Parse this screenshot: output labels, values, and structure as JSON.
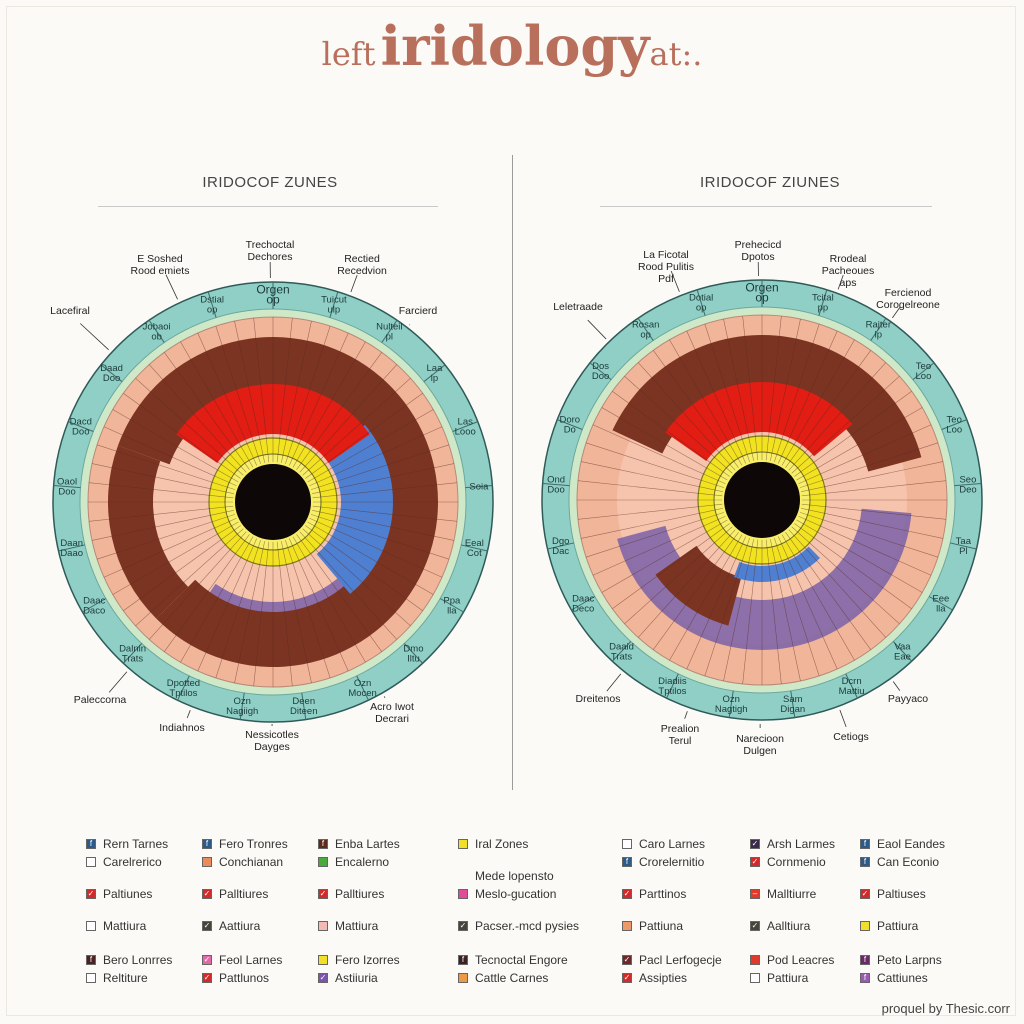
{
  "title": {
    "small_a": "left",
    "big": "iridology",
    "small_b": "at:."
  },
  "colors": {
    "ring": "#8fcfc6",
    "ring_dark": "#5a9a94",
    "brown": "#7c3422",
    "salmon": "#f1b59a",
    "red": "#e11d14",
    "blue": "#4f7fd1",
    "purple": "#7a61a8",
    "yellow": "#f2e321",
    "pupil": "#0d0707"
  },
  "panels": [
    {
      "title": "IRIDOCOF ZUNES",
      "outer_labels": [
        {
          "lines": [
            "Lacefiral"
          ]
        },
        {
          "lines": [
            "E Soshed",
            "Rood emiets"
          ]
        },
        {
          "lines": [
            "Trechoctal",
            "Dechores"
          ]
        },
        {
          "lines": [
            "Rectied",
            "Recedvion"
          ]
        },
        {
          "lines": [
            "Farcierd"
          ]
        },
        {
          "lines": [
            "Paleccorna"
          ]
        },
        {
          "lines": [
            "Indiahnos"
          ]
        },
        {
          "lines": [
            "Nessicotles",
            "Dayges"
          ]
        },
        {
          "lines": [
            "Acro Iwot",
            "Decrari"
          ]
        }
      ],
      "ring_labels": [
        {
          "lines": [
            "Orgen",
            "op"
          ]
        },
        {
          "lines": [
            "Tuicut",
            "ulp"
          ]
        },
        {
          "lines": [
            "Nulteil",
            "pl"
          ]
        },
        {
          "lines": [
            "Laa",
            "lp"
          ]
        },
        {
          "lines": [
            "Las",
            "Looo"
          ]
        },
        {
          "lines": [
            "Soia"
          ]
        },
        {
          "lines": [
            "Eeal",
            "Cot"
          ]
        },
        {
          "lines": [
            "Ppa",
            "lla"
          ]
        },
        {
          "lines": [
            "Dmo",
            "Iltu"
          ]
        },
        {
          "lines": [
            "Ozn",
            "Mocen"
          ]
        },
        {
          "lines": [
            "Deen",
            "Diteen"
          ]
        },
        {
          "lines": [
            "Ozn",
            "Nagiigh"
          ]
        },
        {
          "lines": [
            "Dpotted",
            "Tptilos"
          ]
        },
        {
          "lines": [
            "Dalnin",
            "Trats"
          ]
        },
        {
          "lines": [
            "Daac",
            "Daco"
          ]
        },
        {
          "lines": [
            "Daan",
            "Daao"
          ]
        },
        {
          "lines": [
            "Oaol",
            "Doo"
          ]
        },
        {
          "lines": [
            "Dacd",
            "Doo"
          ]
        },
        {
          "lines": [
            "Daad",
            "Doo"
          ]
        },
        {
          "lines": [
            "Jobaoi",
            "ob"
          ]
        },
        {
          "lines": [
            "Dstial",
            "op"
          ]
        }
      ]
    },
    {
      "title": "IRIDOCOF ZIUNES",
      "outer_labels": [
        {
          "lines": [
            "Leletraade"
          ]
        },
        {
          "lines": [
            "La Ficotal",
            "Rood Pulitis",
            "Pdf"
          ]
        },
        {
          "lines": [
            "Prehecicd",
            "Dpotos"
          ]
        },
        {
          "lines": [
            "Rrodeal",
            "Pacheoues",
            "aps"
          ]
        },
        {
          "lines": [
            "Fercienod",
            "Corogelreone"
          ]
        },
        {
          "lines": [
            "Dreitenos"
          ]
        },
        {
          "lines": [
            "Prealion",
            "Terul"
          ]
        },
        {
          "lines": [
            "Narecioon",
            "Dulgen"
          ]
        },
        {
          "lines": [
            "Cetiogs"
          ]
        },
        {
          "lines": [
            "Payyaco"
          ]
        }
      ],
      "ring_labels": [
        {
          "lines": [
            "Orgen",
            "op"
          ]
        },
        {
          "lines": [
            "Tcital",
            "pp"
          ]
        },
        {
          "lines": [
            "Rajter",
            "lp"
          ]
        },
        {
          "lines": [
            "Teo",
            "Loo"
          ]
        },
        {
          "lines": [
            "Teo",
            "Loo"
          ]
        },
        {
          "lines": [
            "Seo",
            "Deo"
          ]
        },
        {
          "lines": [
            "Taa",
            "Pl"
          ]
        },
        {
          "lines": [
            "Eee",
            "lla"
          ]
        },
        {
          "lines": [
            "Vaa",
            "Eae"
          ]
        },
        {
          "lines": [
            "Dcrn",
            "Mattiu"
          ]
        },
        {
          "lines": [
            "Sam",
            "Digan"
          ]
        },
        {
          "lines": [
            "Ozn",
            "Nagtigh"
          ]
        },
        {
          "lines": [
            "Diadiis",
            "Tptilos"
          ]
        },
        {
          "lines": [
            "Daaid",
            "Trats"
          ]
        },
        {
          "lines": [
            "Daac",
            "Deco"
          ]
        },
        {
          "lines": [
            "Dgo",
            "Dac"
          ]
        },
        {
          "lines": [
            "Ond",
            "Doo"
          ]
        },
        {
          "lines": [
            "Doro",
            "Do"
          ]
        },
        {
          "lines": [
            "Dos",
            "Doo"
          ]
        },
        {
          "lines": [
            "Rosan",
            "op"
          ]
        },
        {
          "lines": [
            "Dotial",
            "op"
          ]
        }
      ]
    }
  ],
  "legend": [
    [
      {
        "label": "Rern Tarnes",
        "color": "#2e5a88",
        "mark": "f"
      },
      {
        "label": "Carelrerico",
        "color": "#ffffff",
        "mark": ""
      },
      {
        "label": "Paltiunes",
        "color": "#cf2b2b",
        "mark": "v"
      },
      {
        "label": "Mattiura",
        "color": "#ffffff",
        "mark": ""
      },
      {
        "label": "Bero Lonrres",
        "color": "#4a2222",
        "mark": "f"
      },
      {
        "label": "Reltiture",
        "color": "#ffffff",
        "mark": ""
      }
    ],
    [
      {
        "label": "Fero Tronres",
        "color": "#2e5a88",
        "mark": "f"
      },
      {
        "label": "Conchianan",
        "color": "#ec8b5a",
        "mark": ""
      },
      {
        "label": "Palltiures",
        "color": "#cf2b2b",
        "mark": "v"
      },
      {
        "label": "Aattiura",
        "color": "#44463a",
        "mark": "v"
      },
      {
        "label": "Feol Larnes",
        "color": "#e06aa8",
        "mark": "v"
      },
      {
        "label": "Pattlunos",
        "color": "#cf2b2b",
        "mark": "v"
      }
    ],
    [
      {
        "label": "Enba Lartes",
        "color": "#5a2a1e",
        "mark": "f"
      },
      {
        "label": "Encalerno",
        "color": "#4caa3c",
        "mark": ""
      },
      {
        "label": "Palltiures",
        "color": "#cf2b2b",
        "mark": "v"
      },
      {
        "label": "Mattiura",
        "color": "#f3b9b4",
        "mark": ""
      },
      {
        "label": "Fero Izorres",
        "color": "#f0e02a",
        "mark": ""
      },
      {
        "label": "Astiiuria",
        "color": "#7a55a8",
        "mark": "v"
      }
    ],
    [
      {
        "label": "Iral Zones",
        "color": "#f0e02a",
        "mark": ""
      },
      {
        "label": "Mede lopensto",
        "color": "#ffffff",
        "mark": "none"
      },
      {
        "label": "Meslo-gucation",
        "color": "#e04c9a",
        "mark": ""
      },
      {
        "label": "Pacser.-mcd pysies",
        "color": "#44463a",
        "mark": "v"
      },
      {
        "label": "Tecnoctal Engore",
        "color": "#3a2222",
        "mark": "f"
      },
      {
        "label": "Cattle Carnes",
        "color": "#ec9a45",
        "mark": ""
      }
    ],
    [
      {
        "label": "Caro Larnes",
        "color": "#ffffff",
        "mark": ""
      },
      {
        "label": "Crorelernitio",
        "color": "#2e5a88",
        "mark": "f"
      },
      {
        "label": "Parttinos",
        "color": "#cf2b2b",
        "mark": "v"
      },
      {
        "label": "Pattiuna",
        "color": "#ec9a6a",
        "mark": ""
      },
      {
        "label": "Pacl Lerfogecje",
        "color": "#6a2a2a",
        "mark": "v"
      },
      {
        "label": "Assipties",
        "color": "#cf2b2b",
        "mark": "v"
      }
    ],
    [
      {
        "label": "Arsh Larmes",
        "color": "#3a2a4a",
        "mark": "v"
      },
      {
        "label": "Cornmenio",
        "color": "#cf2b2b",
        "mark": "v"
      },
      {
        "label": "Malltiurre",
        "color": "#e03a2a",
        "mark": "-"
      },
      {
        "label": "Aalltiura",
        "color": "#44463a",
        "mark": "v"
      },
      {
        "label": "Pod Leacres",
        "color": "#e03a2a",
        "mark": ""
      },
      {
        "label": "Pattiura",
        "color": "#ffffff",
        "mark": ""
      }
    ],
    [
      {
        "label": "Eaol Eandes",
        "color": "#2e5a88",
        "mark": "f"
      },
      {
        "label": "Can Econio",
        "color": "#2e5a88",
        "mark": "f"
      },
      {
        "label": "Paltiuses",
        "color": "#cf2b2b",
        "mark": "v"
      },
      {
        "label": "Pattiura",
        "color": "#f0e02a",
        "mark": ""
      },
      {
        "label": "Peto Larpns",
        "color": "#6a2a6a",
        "mark": "f"
      },
      {
        "label": "Cattiunes",
        "color": "#9a5ab0",
        "mark": "f"
      }
    ]
  ],
  "credit": "proquel by Thesic.corr"
}
